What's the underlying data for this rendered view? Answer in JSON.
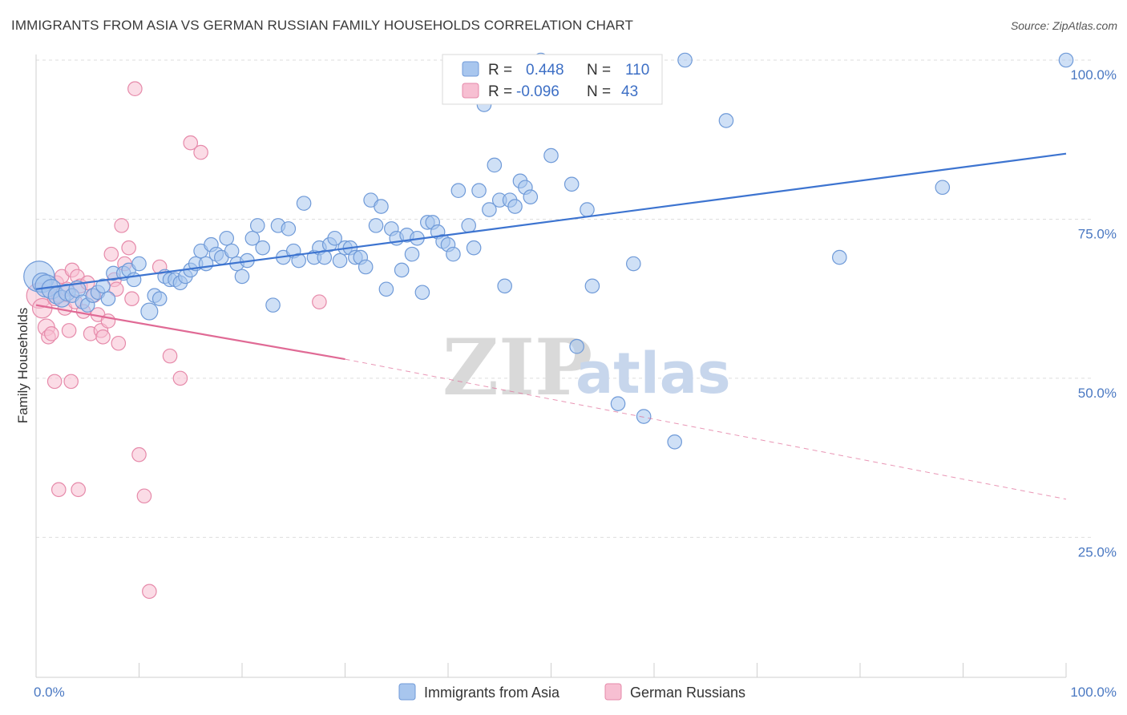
{
  "title": "IMMIGRANTS FROM ASIA VS GERMAN RUSSIAN FAMILY HOUSEHOLDS CORRELATION CHART",
  "source": "Source: ZipAtlas.com",
  "watermark": {
    "zip": "ZIP",
    "atlas": "atlas"
  },
  "legend": {
    "r_label": "R =",
    "n_label": "N =",
    "items": [
      {
        "r": "0.448",
        "n": "110",
        "color": "#a8c6ee",
        "stroke": "#6f9ad8"
      },
      {
        "r": "-0.096",
        "n": " 43",
        "color": "#f7bfd2",
        "stroke": "#e68aaa"
      }
    ]
  },
  "chart_data": {
    "type": "scatter",
    "ylabel": "Family Households",
    "xlabel": "",
    "x_tick_labels": [
      "0.0%",
      "100.0%"
    ],
    "y_tick_labels": [
      "100.0%",
      "75.0%",
      "50.0%",
      "25.0%"
    ],
    "y_ticks": [
      100,
      75,
      50,
      25
    ],
    "xlim": [
      0,
      100
    ],
    "ylim": [
      3,
      100
    ],
    "series": [
      {
        "name": "Immigrants from Asia",
        "color": "#a8c6ee",
        "stroke": "#6f9ad8",
        "trend": {
          "x": [
            0,
            100
          ],
          "y": [
            64.0,
            85.3
          ],
          "color": "#3d74d0"
        },
        "points": [
          [
            0.3,
            66,
            22
          ],
          [
            0.6,
            65,
            14
          ],
          [
            1,
            64.5,
            16
          ],
          [
            1.5,
            64,
            14
          ],
          [
            2,
            63,
            12
          ],
          [
            2.5,
            62.5,
            12
          ],
          [
            3,
            63.5,
            12
          ],
          [
            3.5,
            63,
            10
          ],
          [
            4,
            64,
            12
          ],
          [
            4.5,
            62,
            10
          ],
          [
            5,
            61.5,
            10
          ],
          [
            5.5,
            63,
            10
          ],
          [
            6,
            63.5,
            10
          ],
          [
            6.5,
            64.5,
            10
          ],
          [
            7,
            62.5,
            10
          ],
          [
            7.5,
            66.5,
            10
          ],
          [
            8.5,
            66.5,
            10
          ],
          [
            9,
            67,
            10
          ],
          [
            9.5,
            65.5,
            10
          ],
          [
            10,
            68,
            10
          ],
          [
            11,
            60.5,
            12
          ],
          [
            11.5,
            63,
            10
          ],
          [
            12,
            62.5,
            10
          ],
          [
            12.5,
            66,
            10
          ],
          [
            13,
            65.5,
            10
          ],
          [
            13.5,
            65.5,
            10
          ],
          [
            14,
            65,
            10
          ],
          [
            14.5,
            66,
            10
          ],
          [
            15,
            67,
            10
          ],
          [
            15.5,
            68,
            10
          ],
          [
            16,
            70,
            10
          ],
          [
            16.5,
            68,
            10
          ],
          [
            17,
            71,
            10
          ],
          [
            17.5,
            69.5,
            10
          ],
          [
            18,
            69,
            10
          ],
          [
            18.5,
            72,
            10
          ],
          [
            19,
            70,
            10
          ],
          [
            19.5,
            68,
            10
          ],
          [
            20,
            66,
            10
          ],
          [
            20.5,
            68.5,
            10
          ],
          [
            21,
            72,
            10
          ],
          [
            21.5,
            74,
            10
          ],
          [
            22,
            70.5,
            10
          ],
          [
            23,
            61.5,
            10
          ],
          [
            23.5,
            74,
            10
          ],
          [
            24,
            69,
            10
          ],
          [
            24.5,
            73.5,
            10
          ],
          [
            25,
            70,
            10
          ],
          [
            25.5,
            68.5,
            10
          ],
          [
            26,
            77.5,
            10
          ],
          [
            27,
            69,
            10
          ],
          [
            27.5,
            70.5,
            10
          ],
          [
            28,
            69,
            10
          ],
          [
            28.5,
            71,
            10
          ],
          [
            29,
            72,
            10
          ],
          [
            29.5,
            68.5,
            10
          ],
          [
            30,
            70.5,
            10
          ],
          [
            30.5,
            70.5,
            10
          ],
          [
            31,
            69,
            10
          ],
          [
            31.5,
            69,
            10
          ],
          [
            32,
            67.5,
            10
          ],
          [
            32.5,
            78,
            10
          ],
          [
            33,
            74,
            10
          ],
          [
            33.5,
            77,
            10
          ],
          [
            34,
            64,
            10
          ],
          [
            34.5,
            73.5,
            10
          ],
          [
            35,
            72,
            10
          ],
          [
            35.5,
            67,
            10
          ],
          [
            36,
            72.5,
            10
          ],
          [
            36.5,
            69.5,
            10
          ],
          [
            37,
            72,
            10
          ],
          [
            37.5,
            63.5,
            10
          ],
          [
            38,
            74.5,
            10
          ],
          [
            38.5,
            74.5,
            10
          ],
          [
            39,
            73,
            10
          ],
          [
            39.5,
            71.5,
            10
          ],
          [
            40,
            71,
            10
          ],
          [
            40.5,
            69.5,
            10
          ],
          [
            41,
            79.5,
            10
          ],
          [
            42,
            74,
            10
          ],
          [
            42.5,
            70.5,
            10
          ],
          [
            43,
            79.5,
            10
          ],
          [
            43.5,
            93,
            10
          ],
          [
            44,
            76.5,
            10
          ],
          [
            44.5,
            83.5,
            10
          ],
          [
            45,
            78,
            10
          ],
          [
            45.5,
            64.5,
            10
          ],
          [
            46,
            78,
            10
          ],
          [
            46.5,
            77,
            10
          ],
          [
            47,
            81,
            10
          ],
          [
            47.5,
            80,
            10
          ],
          [
            48,
            78.5,
            10
          ],
          [
            49,
            100,
            10
          ],
          [
            50,
            85,
            10
          ],
          [
            52,
            80.5,
            10
          ],
          [
            52.5,
            55,
            10
          ],
          [
            53.5,
            76.5,
            10
          ],
          [
            54,
            64.5,
            10
          ],
          [
            56.5,
            46,
            10
          ],
          [
            58,
            68,
            10
          ],
          [
            59,
            44,
            10
          ],
          [
            62,
            40,
            10
          ],
          [
            63,
            100,
            10
          ],
          [
            67,
            90.5,
            10
          ],
          [
            78,
            69,
            10
          ],
          [
            88,
            80,
            10
          ],
          [
            100,
            100,
            10
          ]
        ]
      },
      {
        "name": "German Russians",
        "color": "#f7bfd2",
        "stroke": "#e68aaa",
        "trend": {
          "x": [
            0,
            30
          ],
          "y": [
            61.5,
            53.0
          ],
          "dash_to": [
            100,
            31.0
          ],
          "color": "#e06a95"
        },
        "points": [
          [
            0.3,
            63,
            18
          ],
          [
            0.6,
            61,
            14
          ],
          [
            1,
            58,
            12
          ],
          [
            1.2,
            56.5,
            10
          ],
          [
            1.5,
            57,
            10
          ],
          [
            1.8,
            62.5,
            10
          ],
          [
            2,
            65,
            10
          ],
          [
            2.2,
            63,
            10
          ],
          [
            2.5,
            66,
            10
          ],
          [
            2.8,
            61,
            10
          ],
          [
            3,
            64,
            10
          ],
          [
            3.2,
            57.5,
            10
          ],
          [
            3.5,
            67,
            10
          ],
          [
            3.8,
            62,
            10
          ],
          [
            4,
            66,
            10
          ],
          [
            4.3,
            64.5,
            10
          ],
          [
            4.6,
            60.5,
            10
          ],
          [
            5,
            65,
            10
          ],
          [
            5.3,
            57,
            10
          ],
          [
            5.6,
            63,
            10
          ],
          [
            6,
            60,
            10
          ],
          [
            6.3,
            57.5,
            10
          ],
          [
            6.5,
            56.5,
            10
          ],
          [
            7,
            59,
            10
          ],
          [
            7.3,
            69.5,
            10
          ],
          [
            7.6,
            65.5,
            10
          ],
          [
            7.8,
            64,
            10
          ],
          [
            8,
            55.5,
            10
          ],
          [
            8.3,
            74,
            10
          ],
          [
            8.6,
            68,
            10
          ],
          [
            9,
            70.5,
            10
          ],
          [
            9.3,
            62.5,
            10
          ],
          [
            9.6,
            95.5,
            10
          ],
          [
            10,
            38,
            10
          ],
          [
            10.5,
            31.5,
            10
          ],
          [
            11,
            16.5,
            10
          ],
          [
            12,
            67.5,
            10
          ],
          [
            13,
            53.5,
            10
          ],
          [
            14,
            50,
            10
          ],
          [
            15,
            87,
            10
          ],
          [
            16,
            85.5,
            10
          ],
          [
            1.8,
            49.5,
            10
          ],
          [
            3.4,
            49.5,
            10
          ],
          [
            2.2,
            32.5,
            10
          ],
          [
            4.1,
            32.5,
            10
          ],
          [
            27.5,
            62,
            10
          ]
        ]
      }
    ]
  },
  "bottom_legend": [
    {
      "label": "Immigrants from Asia",
      "color": "#a8c6ee",
      "stroke": "#6f9ad8"
    },
    {
      "label": "German Russians",
      "color": "#f7bfd2",
      "stroke": "#e68aaa"
    }
  ]
}
